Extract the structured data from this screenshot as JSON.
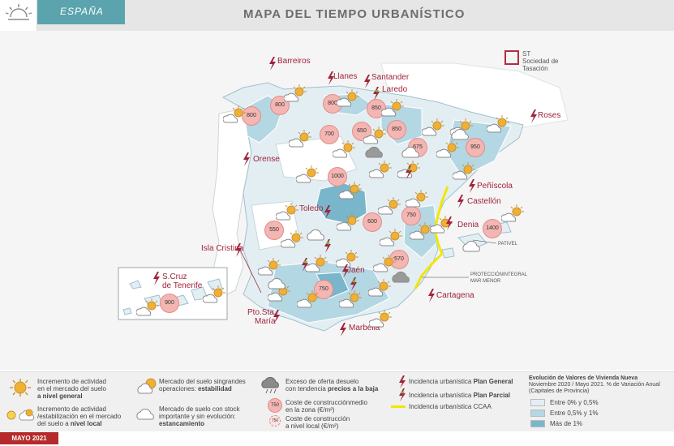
{
  "header": {
    "tab_label": "ESPAÑA",
    "title": "MAPA DEL TIEMPO URBANÍSTICO"
  },
  "brand": {
    "name_line1": "ST",
    "name_line2": "Sociedad de Tasación",
    "color": "#b32d3b"
  },
  "cities": [
    {
      "id": "barreiros",
      "label": "Barreiros"
    },
    {
      "id": "llanes",
      "label": "Llanes"
    },
    {
      "id": "santander",
      "label": "Santander"
    },
    {
      "id": "laredo",
      "label": "Laredo"
    },
    {
      "id": "roses",
      "label": "Roses"
    },
    {
      "id": "orense",
      "label": "Orense"
    },
    {
      "id": "peniscola",
      "label": "Peñíscola"
    },
    {
      "id": "castellon",
      "label": "Castellón"
    },
    {
      "id": "toledo",
      "label": "Toledo"
    },
    {
      "id": "denia",
      "label": "Denia"
    },
    {
      "id": "isla_cristina",
      "label": "Isla Cristina"
    },
    {
      "id": "tenerife_1",
      "label": "S.Cruz"
    },
    {
      "id": "tenerife_2",
      "label": "de Tenerife"
    },
    {
      "id": "jaen",
      "label": "Jaén"
    },
    {
      "id": "cartagena",
      "label": "Cartagena"
    },
    {
      "id": "pto_sta_1",
      "label": "Pto.Sta."
    },
    {
      "id": "pto_sta_2",
      "label": "María"
    },
    {
      "id": "marbella",
      "label": "Marbella"
    }
  ],
  "prices": [
    "800",
    "800",
    "800",
    "850",
    "700",
    "650",
    "850",
    "675",
    "950",
    "1000",
    "600",
    "750",
    "550",
    "1400",
    "570",
    "750",
    "900"
  ],
  "annotations": {
    "pativel": "PATIVEL",
    "proteccion_1": "PROTECCIÓNINTEGRAL",
    "proteccion_2": "MAR MENOR"
  },
  "legend": {
    "sun_1": "Incremento de actividad",
    "sun_2": "en el mercado del suelo",
    "sun_3": "a nivel general",
    "sunlocal_1": "Incremento de actividad",
    "sunlocal_2": "/estabilización en el mercado",
    "sunlocal_3_pre": "del suelo a ",
    "sunlocal_3_b": "nivel local",
    "partly_1": "Mercado del suelo singrandes",
    "partly_2_pre": "operaciones: ",
    "partly_2_b": "estabilidad",
    "cloud_1": "Mercado de suelo con stock",
    "cloud_2": "importante y sin evolución:",
    "cloud_3": "estancamiento",
    "dark_1": "Exceso de oferta desuelo",
    "dark_2_pre": "con tendencia ",
    "dark_2_b": "precios a la baja",
    "cost_big_1": "Coste de construcciónmedio",
    "cost_big_2": "en la zona (€/m²)",
    "cost_big_value": "750",
    "cost_small_1": "Coste de construcción",
    "cost_small_2": "a nivel local (€/m²)",
    "cost_small_value": "750",
    "plan_general_pre": "Incidencia urbanística ",
    "plan_general_b": "Plan General",
    "plan_parcial_pre": "Incidencia urbanística ",
    "plan_parcial_b": "Plan Parcial",
    "ccaa": "Incidencia urbanística CCAA",
    "scale_title": "Evolución de Valores de Vivienda Nueva",
    "scale_subtitle": "Noviembre 2020 / Mayo 2021. % de Variación Anual (Capitales de Provincia)",
    "scale_items": [
      {
        "label": "Entre 0% y 0,5%",
        "color": "#e3eef3"
      },
      {
        "label": "Entre 0,5% y 1%",
        "color": "#b4d7e4"
      },
      {
        "label": "Más de 1%",
        "color": "#79b6cb"
      }
    ]
  },
  "footer": {
    "date": "MAYO 2021"
  },
  "colors": {
    "accent": "#5ba3ad",
    "price_fill": "#f3b6b2",
    "bolt": "#a0243c",
    "ccaa_line": "#f2e600"
  }
}
